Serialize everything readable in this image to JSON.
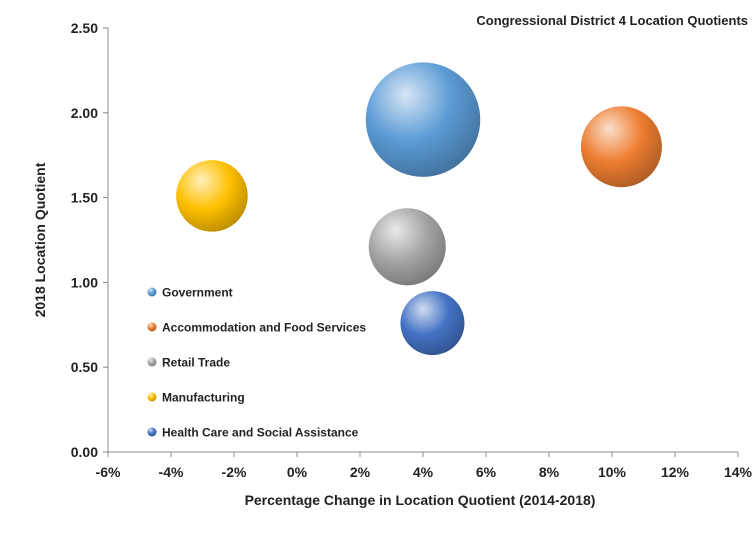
{
  "chart_data": {
    "type": "bubble",
    "title": "Congressional District 4 Location Quotients",
    "xlabel": "Percentage Change in Location Quotient (2014-2018)",
    "ylabel": "2018 Location Quotient",
    "xlim": [
      -6,
      14
    ],
    "ylim": [
      0,
      2.5
    ],
    "x_ticks": [
      "-6%",
      "-4%",
      "-2%",
      "0%",
      "2%",
      "4%",
      "6%",
      "8%",
      "10%",
      "12%",
      "14%"
    ],
    "y_ticks": [
      "0.00",
      "0.50",
      "1.00",
      "1.50",
      "2.00",
      "2.50"
    ],
    "grid": false,
    "legend_position": "left",
    "series": [
      {
        "name": "Government",
        "x": 4.0,
        "y": 1.96,
        "size": 3.2,
        "color": "#5B9BD5"
      },
      {
        "name": "Accommodation and Food Services",
        "x": 10.3,
        "y": 1.8,
        "size": 1.6,
        "color": "#ED7D31"
      },
      {
        "name": "Retail Trade",
        "x": 3.5,
        "y": 1.21,
        "size": 1.45,
        "color": "#A5A5A5"
      },
      {
        "name": "Manufacturing",
        "x": -2.7,
        "y": 1.51,
        "size": 1.25,
        "color": "#FFC000"
      },
      {
        "name": "Health Care and Social Assistance",
        "x": 4.3,
        "y": 0.76,
        "size": 1.0,
        "color": "#4472C4"
      }
    ]
  }
}
